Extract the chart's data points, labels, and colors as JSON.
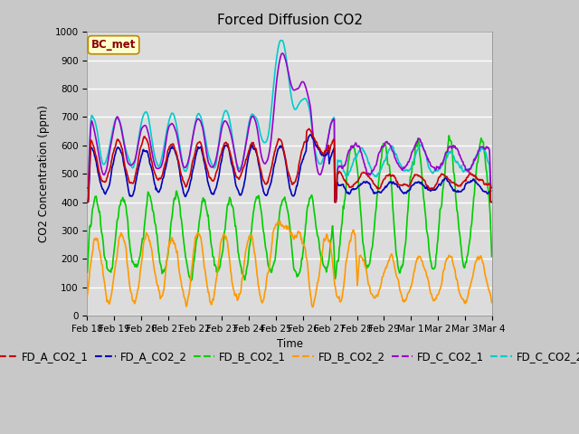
{
  "title": "Forced Diffusion CO2",
  "ylabel": "CO2 Concentration (ppm)",
  "xlabel": "Time",
  "ylim": [
    0,
    1000
  ],
  "annotation_text": "BC_met",
  "plot_bg_color": "#dcdcdc",
  "fig_bg_color": "#c8c8c8",
  "grid_color": "#ffffff",
  "series_colors": {
    "FD_A_CO2_1": "#cc0000",
    "FD_A_CO2_2": "#0000bb",
    "FD_B_CO2_1": "#00cc00",
    "FD_B_CO2_2": "#ff9900",
    "FD_C_CO2_1": "#9900cc",
    "FD_C_CO2_2": "#00cccc"
  },
  "x_tick_labels": [
    "Feb 18",
    "Feb 19",
    "Feb 20",
    "Feb 21",
    "Feb 22",
    "Feb 23",
    "Feb 24",
    "Feb 25",
    "Feb 26",
    "Feb 27",
    "Feb 28",
    "Feb 29",
    "Mar 1",
    "Mar 2",
    "Mar 3",
    "Mar 4"
  ],
  "y_ticks": [
    0,
    100,
    200,
    300,
    400,
    500,
    600,
    700,
    800,
    900,
    1000
  ],
  "title_fontsize": 11,
  "tick_fontsize": 7.5,
  "legend_fontsize": 8.5,
  "line_width": 1.2
}
